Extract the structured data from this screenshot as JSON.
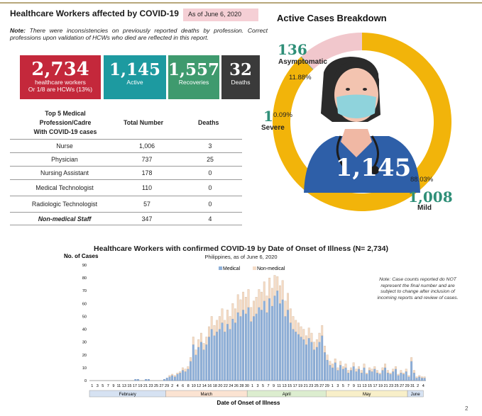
{
  "header": {
    "title": "Healthcare Workers affected by COVID-19",
    "as_of": "As of June 6, 2020",
    "note_label": "Note:",
    "note_text": "There were inconsistencies on previously reported deaths by profession. Correct professions upon validation of HCWs who died are reflected in this report."
  },
  "stats": {
    "total": {
      "value": "2,734",
      "label1": "healthcare workers",
      "label2": "Or 1/8 are HCWs (13%)"
    },
    "active": {
      "value": "1,145",
      "label": "Active"
    },
    "recoveries": {
      "value": "1,557",
      "label": "Recoveries"
    },
    "deaths": {
      "value": "32",
      "label": "Deaths"
    },
    "colors": {
      "total": "#c4283b",
      "active": "#1d9aa0",
      "recoveries": "#3f9a6e",
      "deaths": "#3a3a3a"
    }
  },
  "table": {
    "head_line1": "Top 5 Medical",
    "head_line2": "Profession/Cadre",
    "head_line3": "With COVID-19 cases",
    "col_total": "Total Number",
    "col_deaths": "Deaths",
    "rows": [
      {
        "name": "Nurse",
        "total": "1,006",
        "deaths": "3"
      },
      {
        "name": "Physician",
        "total": "737",
        "deaths": "25"
      },
      {
        "name": "Nursing Assistant",
        "total": "178",
        "deaths": "0"
      },
      {
        "name": "Medical Technologist",
        "total": "110",
        "deaths": "0"
      },
      {
        "name": "Radiologic Technologist",
        "total": "57",
        "deaths": "0"
      },
      {
        "name": "Non-medical Staff",
        "total": "347",
        "deaths": "4"
      }
    ]
  },
  "breakdown": {
    "title": "Active Cases Breakdown",
    "center_value": "1,145",
    "asymptomatic": {
      "count": "136",
      "label": "Asymptomatic",
      "pct": "11.88%",
      "value": 11.88,
      "color": "#f1c7cc"
    },
    "severe": {
      "count": "1",
      "label": "Severe",
      "pct": "0.09%",
      "value": 0.09,
      "color": "#2f8f78"
    },
    "mild": {
      "count": "1,008",
      "label": "Mild",
      "pct": "88.03%",
      "value": 88.03,
      "color": "#f2b40a"
    }
  },
  "chart_data": {
    "type": "bar",
    "title": "Healthcare Workers with confirmed COVID-19 by Date of Onset of Illness (N= 2,734)",
    "subtitle": "Philippines, as of  June 6, 2020",
    "ylabel": "No. of Cases",
    "xlabel": "Date of Onset of Illness",
    "ylim": [
      0,
      90
    ],
    "yticks": [
      0,
      10,
      20,
      30,
      40,
      50,
      60,
      70,
      80,
      90
    ],
    "legend": [
      "Medical",
      "Non-medical"
    ],
    "legend_position": "top-center",
    "colors": {
      "medical": "#8fb0d8",
      "non_medical": "#f5dcc6"
    },
    "months": [
      {
        "name": "February",
        "days": 29,
        "color": "#d6e2f2"
      },
      {
        "name": "March",
        "days": 31,
        "color": "#fbe3d2"
      },
      {
        "name": "April",
        "days": 30,
        "color": "#dcedcf"
      },
      {
        "name": "May",
        "days": 31,
        "color": "#f8efc9"
      },
      {
        "name": "June",
        "days": 6,
        "color": "#d6e2f2"
      }
    ],
    "series": [
      {
        "name": "Medical",
        "values": [
          0,
          0,
          0,
          0,
          0,
          0,
          0,
          0,
          0,
          0,
          0,
          0,
          0,
          0,
          0,
          0,
          0,
          1,
          1,
          0,
          0,
          1,
          1,
          0,
          0,
          0,
          0,
          0,
          1,
          2,
          3,
          4,
          3,
          5,
          6,
          8,
          7,
          9,
          15,
          28,
          20,
          26,
          30,
          24,
          28,
          34,
          40,
          35,
          38,
          40,
          45,
          38,
          44,
          40,
          48,
          45,
          53,
          50,
          55,
          52,
          57,
          46,
          50,
          52,
          57,
          55,
          62,
          53,
          64,
          58,
          66,
          70,
          60,
          63,
          50,
          55,
          45,
          40,
          38,
          36,
          34,
          32,
          28,
          33,
          30,
          24,
          26,
          30,
          35,
          22,
          16,
          12,
          10,
          14,
          8,
          12,
          9,
          10,
          6,
          8,
          11,
          7,
          9,
          6,
          10,
          5,
          8,
          7,
          9,
          6,
          5,
          8,
          10,
          6,
          5,
          7,
          9,
          4,
          6,
          5,
          7,
          3,
          15,
          6,
          2,
          3,
          2,
          2
        ]
      },
      {
        "name": "Non-medical",
        "values": [
          0,
          0,
          0,
          0,
          0,
          0,
          0,
          0,
          0,
          0,
          0,
          0,
          0,
          0,
          0,
          0,
          0,
          0,
          0,
          0,
          0,
          0,
          0,
          0,
          0,
          0,
          0,
          0,
          0,
          0,
          1,
          1,
          1,
          1,
          1,
          2,
          2,
          2,
          3,
          6,
          4,
          6,
          7,
          5,
          6,
          8,
          10,
          8,
          9,
          10,
          11,
          9,
          11,
          10,
          12,
          11,
          14,
          13,
          14,
          13,
          14,
          11,
          12,
          13,
          14,
          14,
          15,
          13,
          16,
          14,
          16,
          11,
          14,
          15,
          12,
          13,
          11,
          10,
          9,
          9,
          8,
          8,
          7,
          8,
          7,
          6,
          6,
          7,
          8,
          5,
          4,
          3,
          3,
          3,
          2,
          3,
          2,
          3,
          2,
          2,
          3,
          2,
          2,
          2,
          3,
          1,
          2,
          2,
          2,
          2,
          1,
          2,
          3,
          2,
          1,
          2,
          2,
          1,
          2,
          1,
          2,
          1,
          3,
          2,
          1,
          1,
          1,
          1
        ]
      }
    ],
    "tick_labels": [
      "1",
      "3",
      "5",
      "7",
      "9",
      "11",
      "13",
      "15",
      "17",
      "19",
      "21",
      "23",
      "25",
      "27",
      "29",
      "2",
      "4",
      "6",
      "8",
      "10",
      "12",
      "14",
      "16",
      "18",
      "20",
      "22",
      "24",
      "26",
      "28",
      "30",
      "1",
      "3",
      "5",
      "7",
      "9",
      "11",
      "13",
      "15",
      "17",
      "19",
      "21",
      "23",
      "25",
      "27",
      "29",
      "1",
      "3",
      "5",
      "7",
      "9",
      "11",
      "13",
      "15",
      "17",
      "19",
      "21",
      "23",
      "25",
      "27",
      "29",
      "31",
      "2",
      "4"
    ],
    "note": "Note: Case counts reported do NOT represent the final number and are subject to change after inclusion of incoming reports and review of cases."
  },
  "page_number": "2"
}
